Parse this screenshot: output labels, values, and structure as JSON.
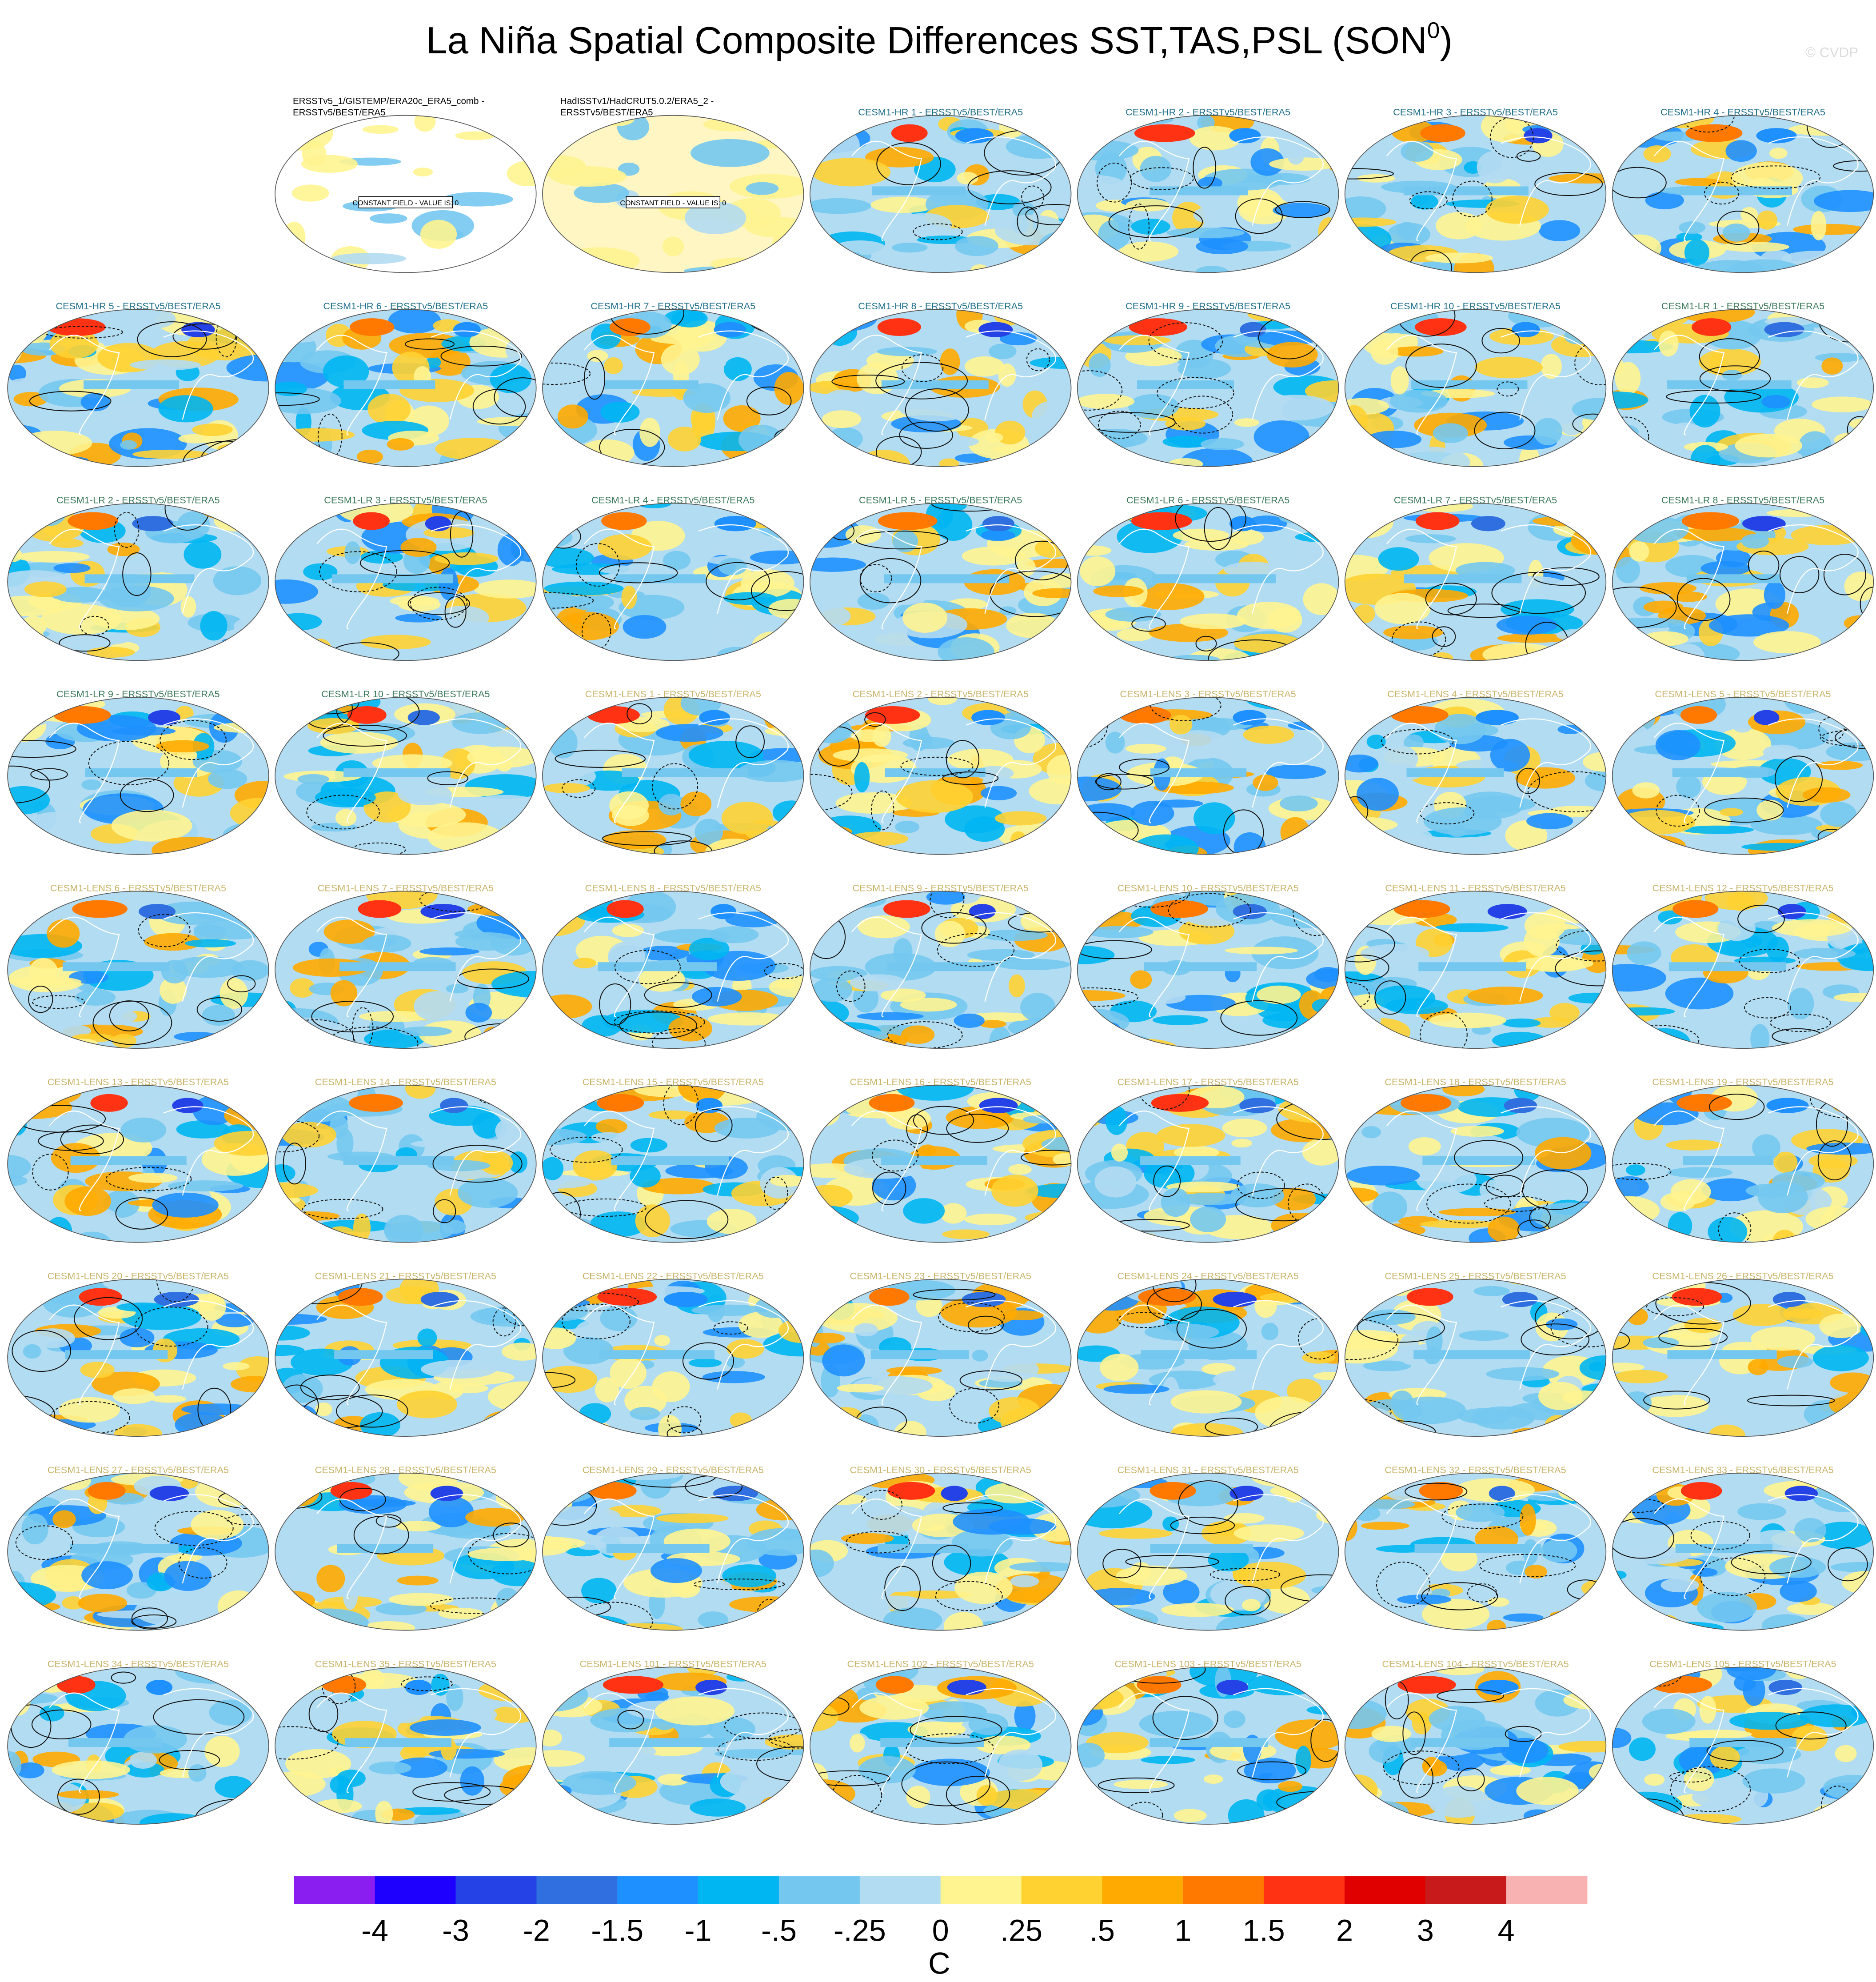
{
  "chart_data": {
    "type": "map-grid",
    "title": "La Niña Spatial Composite Differences SST,TAS,PSL (SON",
    "title_superscript": "0",
    "title_end": ")",
    "watermark": "© CVDP",
    "panels": [
      {
        "title": [
          "ERSSTv5_1/GISTEMP/ERA20c_ERA5_comb -",
          "ERSSTv5/BEST/ERA5"
        ],
        "color": "#000000",
        "note": "CONSTANT FIELD - VALUE IS: 0"
      },
      {
        "title": [
          "HadISSTv1/HadCRUT5.0.2/ERA5_2 -",
          "ERSSTv5/BEST/ERA5"
        ],
        "color": "#000000",
        "note": "CONSTANT FIELD - VALUE IS: 0"
      },
      {
        "title": [
          "CESM1-HR 1 - ERSSTv5/BEST/ERA5"
        ],
        "color": "#1f6f8b"
      },
      {
        "title": [
          "CESM1-HR 2 - ERSSTv5/BEST/ERA5"
        ],
        "color": "#1f6f8b"
      },
      {
        "title": [
          "CESM1-HR 3 - ERSSTv5/BEST/ERA5"
        ],
        "color": "#1f6f8b"
      },
      {
        "title": [
          "CESM1-HR 4 - ERSSTv5/BEST/ERA5"
        ],
        "color": "#1f6f8b"
      },
      {
        "title": [
          "CESM1-HR 5 - ERSSTv5/BEST/ERA5"
        ],
        "color": "#1f6f8b"
      },
      {
        "title": [
          "CESM1-HR 6 - ERSSTv5/BEST/ERA5"
        ],
        "color": "#1f6f8b"
      },
      {
        "title": [
          "CESM1-HR 7 - ERSSTv5/BEST/ERA5"
        ],
        "color": "#1f6f8b"
      },
      {
        "title": [
          "CESM1-HR 8 - ERSSTv5/BEST/ERA5"
        ],
        "color": "#1f6f8b"
      },
      {
        "title": [
          "CESM1-HR 9 - ERSSTv5/BEST/ERA5"
        ],
        "color": "#1f6f8b"
      },
      {
        "title": [
          "CESM1-HR 10 - ERSSTv5/BEST/ERA5"
        ],
        "color": "#1f6f8b"
      },
      {
        "title": [
          "CESM1-LR 1 - ERSSTv5/BEST/ERA5"
        ],
        "color": "#3d7a5c"
      },
      {
        "title": [
          "CESM1-LR 2 - ERSSTv5/BEST/ERA5"
        ],
        "color": "#3d7a5c"
      },
      {
        "title": [
          "CESM1-LR 3 - ERSSTv5/BEST/ERA5"
        ],
        "color": "#3d7a5c"
      },
      {
        "title": [
          "CESM1-LR 4 - ERSSTv5/BEST/ERA5"
        ],
        "color": "#3d7a5c"
      },
      {
        "title": [
          "CESM1-LR 5 - ERSSTv5/BEST/ERA5"
        ],
        "color": "#3d7a5c"
      },
      {
        "title": [
          "CESM1-LR 6 - ERSSTv5/BEST/ERA5"
        ],
        "color": "#3d7a5c"
      },
      {
        "title": [
          "CESM1-LR 7 - ERSSTv5/BEST/ERA5"
        ],
        "color": "#3d7a5c"
      },
      {
        "title": [
          "CESM1-LR 8 - ERSSTv5/BEST/ERA5"
        ],
        "color": "#3d7a5c"
      },
      {
        "title": [
          "CESM1-LR 9 - ERSSTv5/BEST/ERA5"
        ],
        "color": "#3d7a5c"
      },
      {
        "title": [
          "CESM1-LR 10 - ERSSTv5/BEST/ERA5"
        ],
        "color": "#3d7a5c"
      },
      {
        "title": [
          "CESM1-LENS 1 - ERSSTv5/BEST/ERA5"
        ],
        "color": "#c9b46a"
      },
      {
        "title": [
          "CESM1-LENS 2 - ERSSTv5/BEST/ERA5"
        ],
        "color": "#c9b46a"
      },
      {
        "title": [
          "CESM1-LENS 3 - ERSSTv5/BEST/ERA5"
        ],
        "color": "#c9b46a"
      },
      {
        "title": [
          "CESM1-LENS 4 - ERSSTv5/BEST/ERA5"
        ],
        "color": "#c9b46a"
      },
      {
        "title": [
          "CESM1-LENS 5 - ERSSTv5/BEST/ERA5"
        ],
        "color": "#c9b46a"
      },
      {
        "title": [
          "CESM1-LENS 6 - ERSSTv5/BEST/ERA5"
        ],
        "color": "#c9b46a"
      },
      {
        "title": [
          "CESM1-LENS 7 - ERSSTv5/BEST/ERA5"
        ],
        "color": "#c9b46a"
      },
      {
        "title": [
          "CESM1-LENS 8 - ERSSTv5/BEST/ERA5"
        ],
        "color": "#c9b46a"
      },
      {
        "title": [
          "CESM1-LENS 9 - ERSSTv5/BEST/ERA5"
        ],
        "color": "#c9b46a"
      },
      {
        "title": [
          "CESM1-LENS 10 - ERSSTv5/BEST/ERA5"
        ],
        "color": "#c9b46a"
      },
      {
        "title": [
          "CESM1-LENS 11 - ERSSTv5/BEST/ERA5"
        ],
        "color": "#c9b46a"
      },
      {
        "title": [
          "CESM1-LENS 12 - ERSSTv5/BEST/ERA5"
        ],
        "color": "#c9b46a"
      },
      {
        "title": [
          "CESM1-LENS 13 - ERSSTv5/BEST/ERA5"
        ],
        "color": "#c9b46a"
      },
      {
        "title": [
          "CESM1-LENS 14 - ERSSTv5/BEST/ERA5"
        ],
        "color": "#c9b46a"
      },
      {
        "title": [
          "CESM1-LENS 15 - ERSSTv5/BEST/ERA5"
        ],
        "color": "#c9b46a"
      },
      {
        "title": [
          "CESM1-LENS 16 - ERSSTv5/BEST/ERA5"
        ],
        "color": "#c9b46a"
      },
      {
        "title": [
          "CESM1-LENS 17 - ERSSTv5/BEST/ERA5"
        ],
        "color": "#c9b46a"
      },
      {
        "title": [
          "CESM1-LENS 18 - ERSSTv5/BEST/ERA5"
        ],
        "color": "#c9b46a"
      },
      {
        "title": [
          "CESM1-LENS 19 - ERSSTv5/BEST/ERA5"
        ],
        "color": "#c9b46a"
      },
      {
        "title": [
          "CESM1-LENS 20 - ERSSTv5/BEST/ERA5"
        ],
        "color": "#c9b46a"
      },
      {
        "title": [
          "CESM1-LENS 21 - ERSSTv5/BEST/ERA5"
        ],
        "color": "#c9b46a"
      },
      {
        "title": [
          "CESM1-LENS 22 - ERSSTv5/BEST/ERA5"
        ],
        "color": "#c9b46a"
      },
      {
        "title": [
          "CESM1-LENS 23 - ERSSTv5/BEST/ERA5"
        ],
        "color": "#c9b46a"
      },
      {
        "title": [
          "CESM1-LENS 24 - ERSSTv5/BEST/ERA5"
        ],
        "color": "#c9b46a"
      },
      {
        "title": [
          "CESM1-LENS 25 - ERSSTv5/BEST/ERA5"
        ],
        "color": "#c9b46a"
      },
      {
        "title": [
          "CESM1-LENS 26 - ERSSTv5/BEST/ERA5"
        ],
        "color": "#c9b46a"
      },
      {
        "title": [
          "CESM1-LENS 27 - ERSSTv5/BEST/ERA5"
        ],
        "color": "#c9b46a"
      },
      {
        "title": [
          "CESM1-LENS 28 - ERSSTv5/BEST/ERA5"
        ],
        "color": "#c9b46a"
      },
      {
        "title": [
          "CESM1-LENS 29 - ERSSTv5/BEST/ERA5"
        ],
        "color": "#c9b46a"
      },
      {
        "title": [
          "CESM1-LENS 30 - ERSSTv5/BEST/ERA5"
        ],
        "color": "#c9b46a"
      },
      {
        "title": [
          "CESM1-LENS 31 - ERSSTv5/BEST/ERA5"
        ],
        "color": "#c9b46a"
      },
      {
        "title": [
          "CESM1-LENS 32 - ERSSTv5/BEST/ERA5"
        ],
        "color": "#c9b46a"
      },
      {
        "title": [
          "CESM1-LENS 33 - ERSSTv5/BEST/ERA5"
        ],
        "color": "#c9b46a"
      },
      {
        "title": [
          "CESM1-LENS 34 - ERSSTv5/BEST/ERA5"
        ],
        "color": "#c9b46a"
      },
      {
        "title": [
          "CESM1-LENS 35 - ERSSTv5/BEST/ERA5"
        ],
        "color": "#c9b46a"
      },
      {
        "title": [
          "CESM1-LENS 101 - ERSSTv5/BEST/ERA5"
        ],
        "color": "#c9b46a"
      },
      {
        "title": [
          "CESM1-LENS 102 - ERSSTv5/BEST/ERA5"
        ],
        "color": "#c9b46a"
      },
      {
        "title": [
          "CESM1-LENS 103 - ERSSTv5/BEST/ERA5"
        ],
        "color": "#c9b46a"
      },
      {
        "title": [
          "CESM1-LENS 104 - ERSSTv5/BEST/ERA5"
        ],
        "color": "#c9b46a"
      },
      {
        "title": [
          "CESM1-LENS 105 - ERSSTv5/BEST/ERA5"
        ],
        "color": "#c9b46a"
      }
    ],
    "colorbar": {
      "colors": [
        "#8a1ef0",
        "#1e00ff",
        "#2442e6",
        "#2f6fe0",
        "#1e90ff",
        "#00b6f2",
        "#74c8f0",
        "#b2dcf2",
        "#fff490",
        "#ffd232",
        "#ffaa00",
        "#ff7800",
        "#ff3214",
        "#e00000",
        "#c81a1a",
        "#f8b2b2"
      ],
      "ticks": [
        -4,
        -3,
        -2,
        -1.5,
        -1,
        {
          "value": -0.5,
          "label": "-.5"
        },
        {
          "value": -0.25,
          "label": "-.25"
        },
        0,
        {
          "value": 0.25,
          "label": ".25"
        },
        {
          "value": 0.5,
          "label": ".5"
        },
        1,
        1.5,
        2,
        3,
        4
      ],
      "unit": "C"
    }
  }
}
